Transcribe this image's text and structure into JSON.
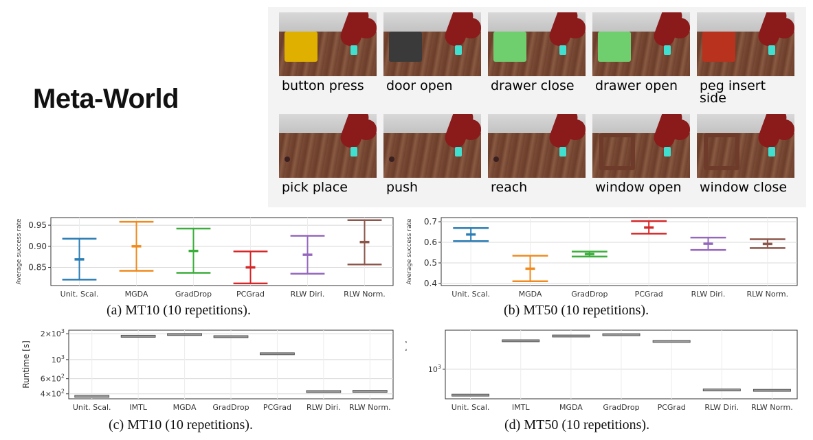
{
  "title": "Meta-World",
  "tasks": [
    {
      "label": "button press"
    },
    {
      "label": "door open"
    },
    {
      "label": "drawer close"
    },
    {
      "label": "drawer open"
    },
    {
      "label": "peg insert\nside"
    },
    {
      "label": "pick place"
    },
    {
      "label": "push"
    },
    {
      "label": "reach"
    },
    {
      "label": "window open"
    },
    {
      "label": "window close"
    }
  ],
  "chart_data": [
    {
      "type": "errorbar",
      "caption": "(a)  MT10 (10 repetitions).",
      "ylabel": "Average success rate",
      "yticks": [
        "0.85",
        "0.90",
        "0.95"
      ],
      "ylim": [
        0.807,
        0.968
      ],
      "categories": [
        "Unit. Scal.",
        "MGDA",
        "GradDrop",
        "PCGrad",
        "RLW Diri.",
        "RLW Norm."
      ],
      "means": [
        0.869,
        0.9,
        0.889,
        0.85,
        0.88,
        0.91
      ],
      "lower": [
        0.821,
        0.842,
        0.837,
        0.812,
        0.835,
        0.857
      ],
      "upper": [
        0.918,
        0.958,
        0.942,
        0.888,
        0.925,
        0.962
      ],
      "colors": [
        "#2a7db5",
        "#f08a1c",
        "#3aad3a",
        "#d62728",
        "#9467bd",
        "#8c564b"
      ]
    },
    {
      "type": "errorbar",
      "caption": "(b)  MT50 (10 repetitions).",
      "ylabel": "Average success rate",
      "yticks": [
        "0.4",
        "0.5",
        "0.6",
        "0.7"
      ],
      "ylim": [
        0.39,
        0.72
      ],
      "categories": [
        "Unit. Scal.",
        "MGDA",
        "GradDrop",
        "PCGrad",
        "RLW Diri.",
        "RLW Norm."
      ],
      "means": [
        0.638,
        0.472,
        0.543,
        0.672,
        0.593,
        0.592
      ],
      "lower": [
        0.606,
        0.411,
        0.531,
        0.642,
        0.563,
        0.572
      ],
      "upper": [
        0.669,
        0.535,
        0.555,
        0.703,
        0.623,
        0.615
      ],
      "colors": [
        "#2a7db5",
        "#f08a1c",
        "#3aad3a",
        "#d62728",
        "#9467bd",
        "#8c564b"
      ]
    },
    {
      "type": "box",
      "scale": "log",
      "caption": "(c)  MT10 (10 repetitions).",
      "ylabel": "Runtime [s]",
      "yticks": [
        {
          "value": 400,
          "base": "4",
          "mid": "×10",
          "exp": "2"
        },
        {
          "value": 600,
          "base": "6",
          "mid": "×10",
          "exp": "2"
        },
        {
          "value": 1000,
          "base": "10",
          "mid": "",
          "exp": "3"
        },
        {
          "value": 2000,
          "base": "2",
          "mid": "×10",
          "exp": "3"
        }
      ],
      "ylim": [
        350,
        2200
      ],
      "categories": [
        "Unit. Scal.",
        "IMTL",
        "MGDA",
        "GradDrop",
        "PCGrad",
        "RLW Diri.",
        "RLW Norm."
      ],
      "values": [
        374,
        1870,
        1960,
        1850,
        1170,
        425,
        428
      ]
    },
    {
      "type": "box",
      "scale": "log",
      "caption": "(d)  MT50 (10 repetitions).",
      "ylabel": "Runtime [s]",
      "yticks": [
        {
          "value": 1000,
          "base": "10",
          "mid": "",
          "exp": "3"
        }
      ],
      "ylim": [
        500,
        2500
      ],
      "categories": [
        "Unit. Scal.",
        "IMTL",
        "MGDA",
        "GradDrop",
        "PCGrad",
        "RLW Diri.",
        "RLW Norm."
      ],
      "values": [
        545,
        1950,
        2180,
        2250,
        1920,
        615,
        610
      ]
    }
  ]
}
